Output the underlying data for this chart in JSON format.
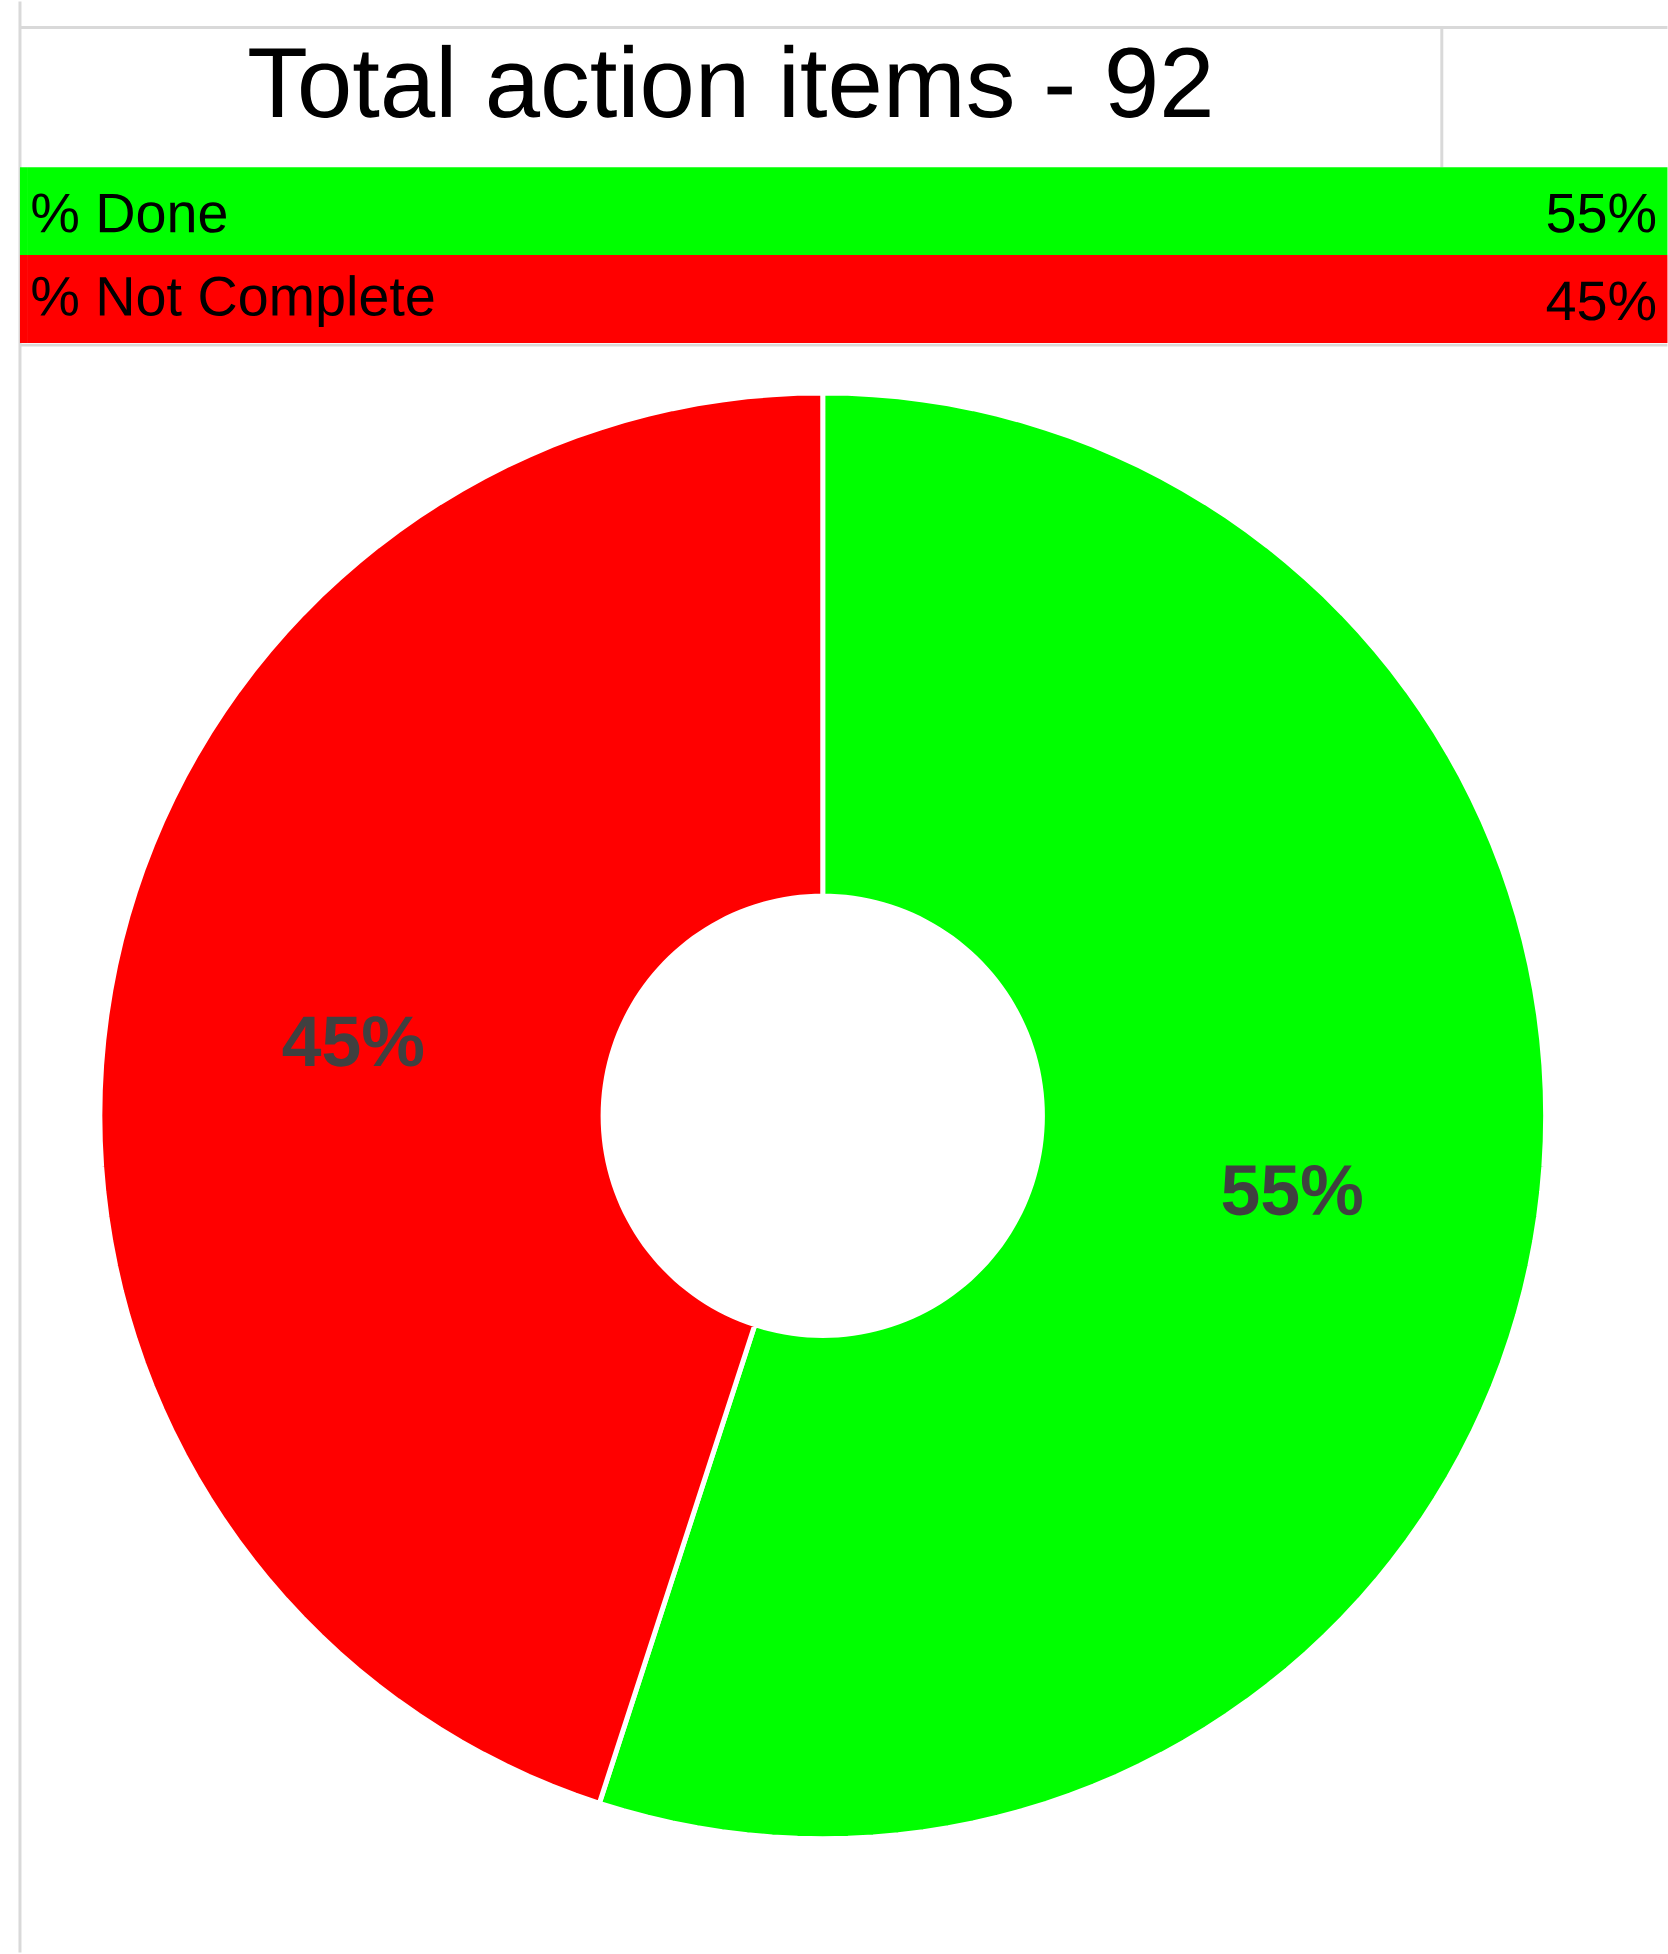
{
  "chart_data": {
    "type": "donut",
    "title": "Total action items - 92",
    "categories": [
      "% Done",
      "% Not Complete"
    ],
    "values": [
      55,
      45
    ],
    "colors": [
      "#00ff00",
      "#ff0000"
    ],
    "value_labels": [
      "55%",
      "45%"
    ],
    "legend": "top"
  }
}
